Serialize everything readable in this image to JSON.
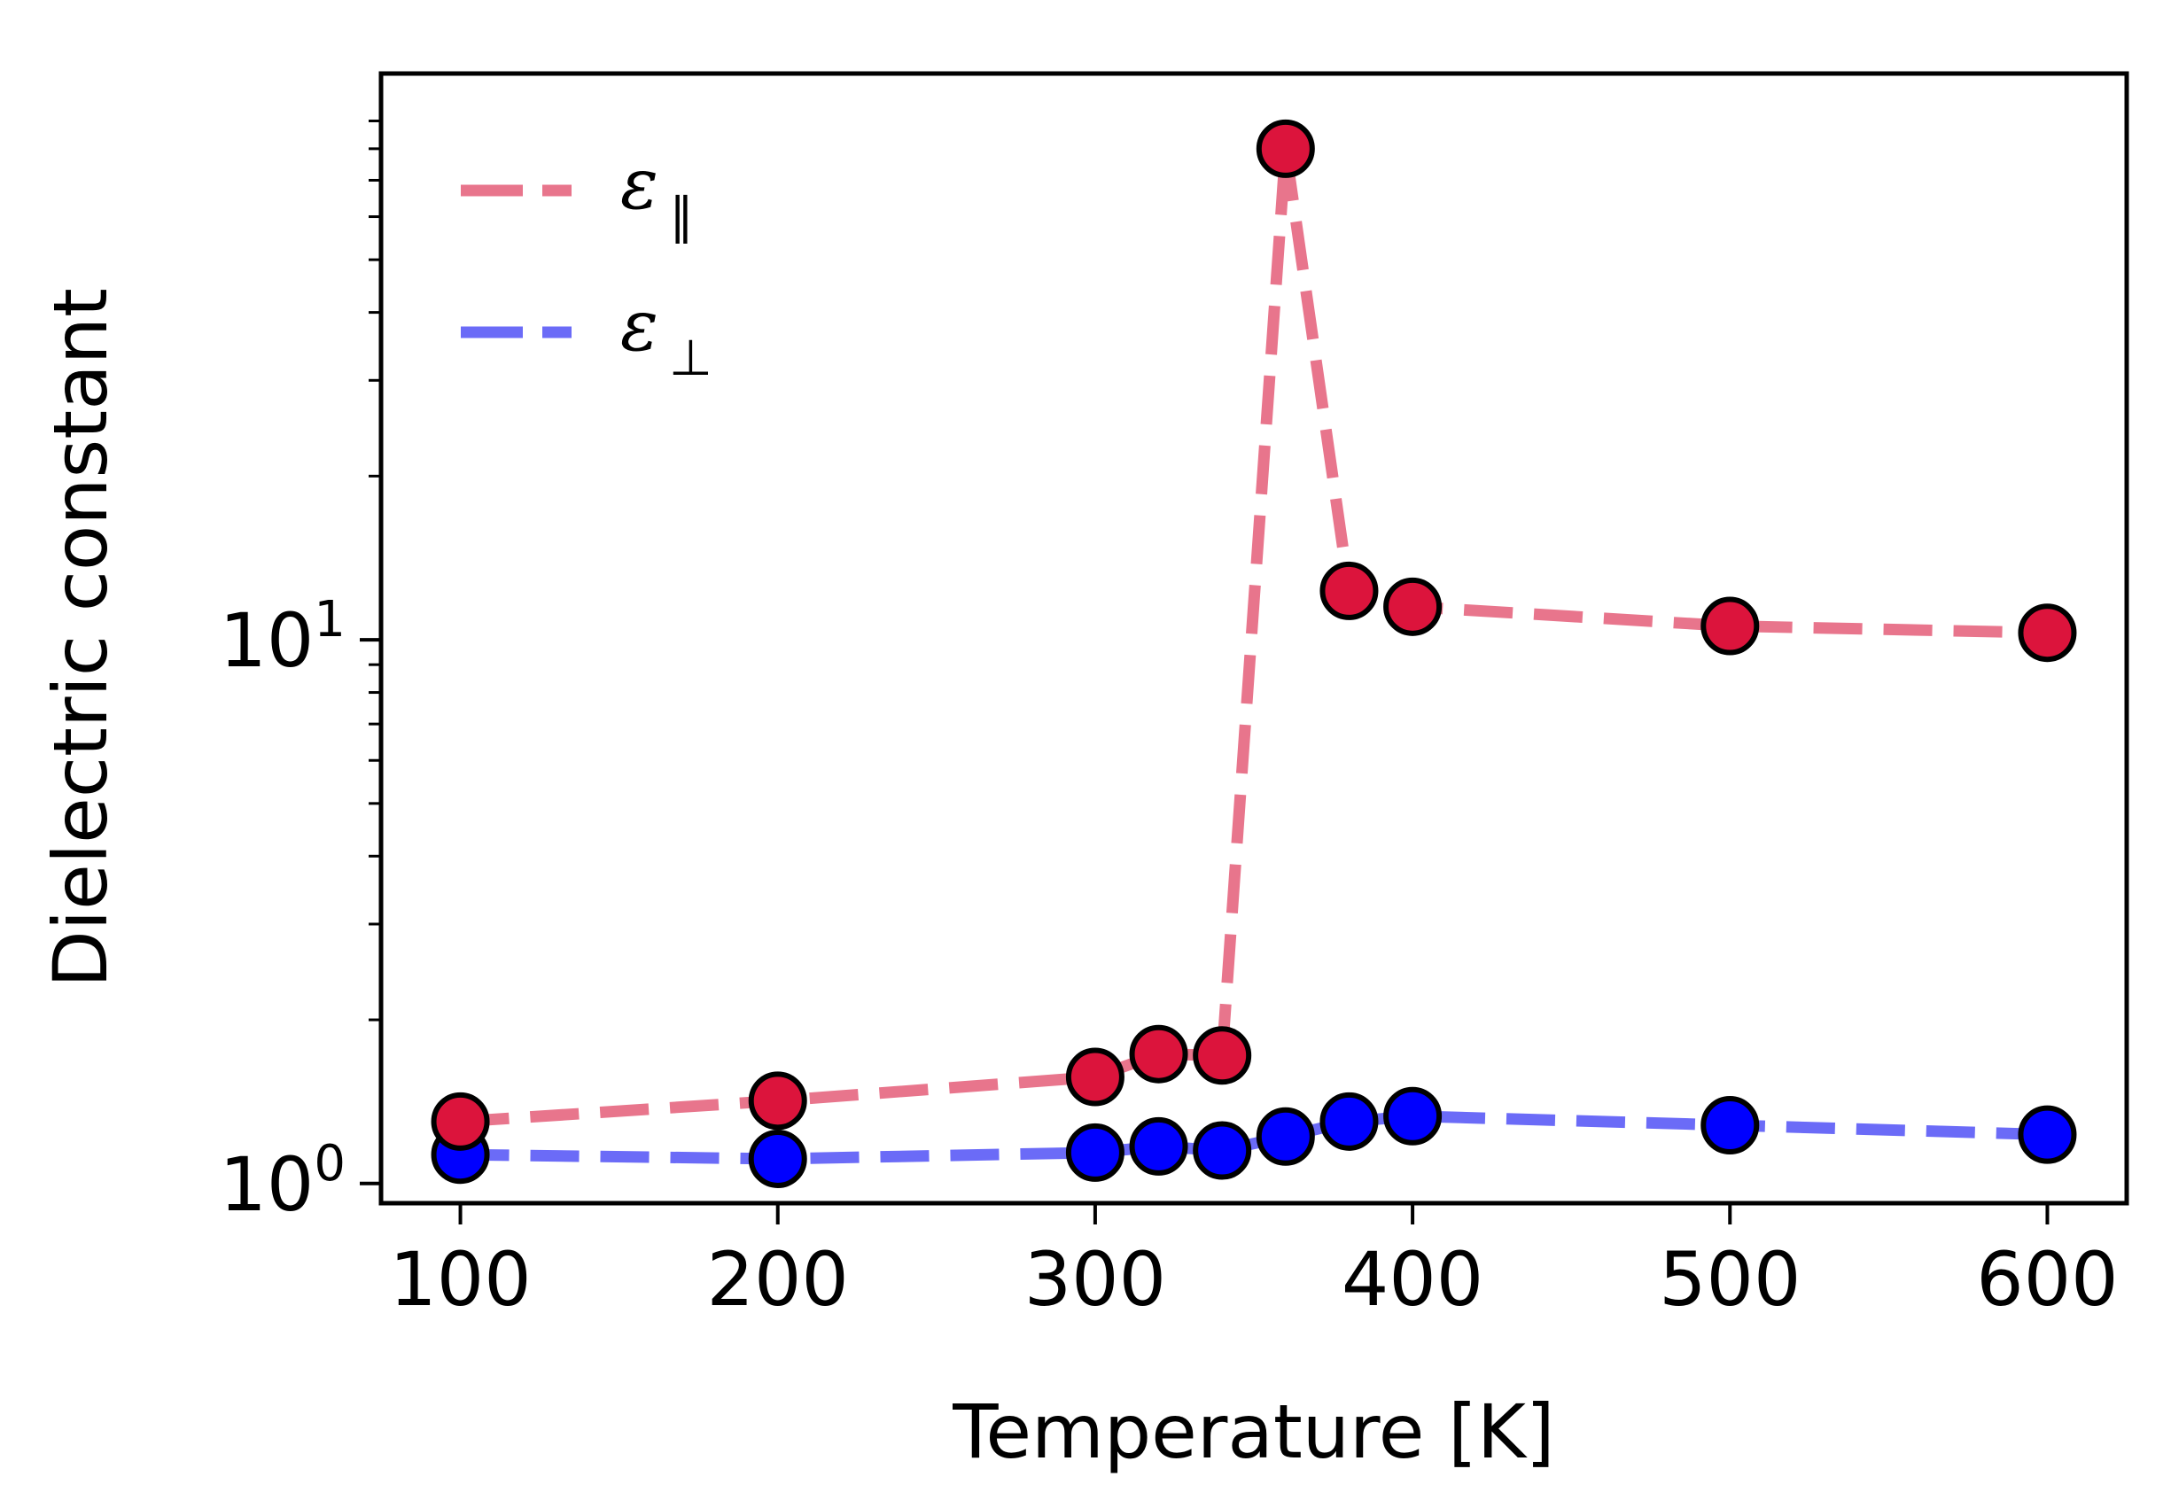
{
  "chart_data": {
    "type": "line",
    "xlabel": "Temperature [K]",
    "ylabel": "Dielectric constant",
    "yscale": "log",
    "xlim": [
      75,
      625
    ],
    "ylim": [
      0.92,
      110
    ],
    "x_ticks": [
      100,
      200,
      300,
      400,
      500,
      600
    ],
    "x_tick_labels": [
      "100",
      "200",
      "300",
      "400",
      "500",
      "600"
    ],
    "y_major_ticks": [
      1,
      10
    ],
    "y_major_tick_labels": [
      {
        "base": "10",
        "exp": "0"
      },
      {
        "base": "10",
        "exp": "1"
      }
    ],
    "grid": false,
    "legend_position": "upper-left",
    "series": [
      {
        "name": "ε∥",
        "symbol": "ε",
        "subscript": "∥",
        "line_color": "#e8758c",
        "marker_color": "#dc143c",
        "x": [
          100,
          200,
          300,
          320,
          340,
          360,
          380,
          400,
          500,
          600
        ],
        "y": [
          1.3,
          1.42,
          1.57,
          1.73,
          1.72,
          80,
          12.3,
          11.5,
          10.6,
          10.3
        ]
      },
      {
        "name": "ε⊥",
        "symbol": "ε",
        "subscript": "⊥",
        "line_color": "#6b6bf7",
        "marker_color": "#0000ff",
        "x": [
          100,
          200,
          300,
          320,
          340,
          360,
          380,
          400,
          500,
          600
        ],
        "y": [
          1.13,
          1.11,
          1.14,
          1.17,
          1.15,
          1.22,
          1.3,
          1.33,
          1.28,
          1.23
        ]
      }
    ]
  }
}
